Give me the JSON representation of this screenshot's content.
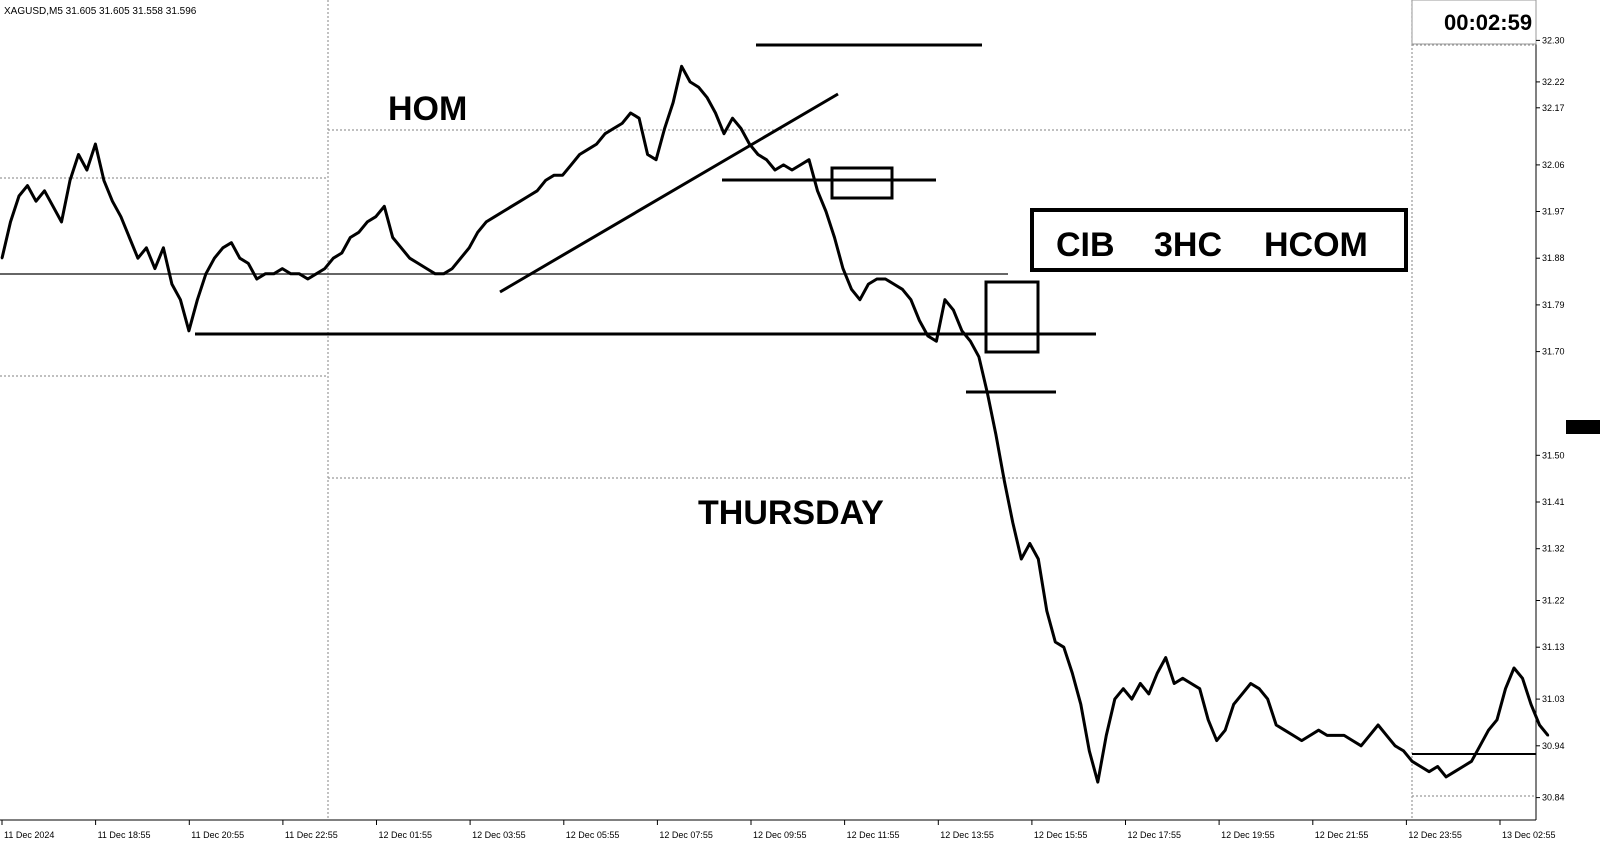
{
  "header": {
    "symbol_info": "XAGUSD,M5  31.605 31.605 31.558 31.596",
    "countdown": "00:02:59"
  },
  "annotations": {
    "hom": "HOM",
    "thursday": "THURSDAY",
    "box_labels": [
      "CIB",
      "3HC",
      "HCOM"
    ]
  },
  "chart_data": {
    "type": "line",
    "title": "",
    "xlabel": "",
    "ylabel": "",
    "x_ticks": [
      "11 Dec 2024",
      "11 Dec 18:55",
      "11 Dec 20:55",
      "11 Dec 22:55",
      "12 Dec 01:55",
      "12 Dec 03:55",
      "12 Dec 05:55",
      "12 Dec 07:55",
      "12 Dec 09:55",
      "12 Dec 11:55",
      "12 Dec 13:55",
      "12 Dec 15:55",
      "12 Dec 17:55",
      "12 Dec 19:55",
      "12 Dec 21:55",
      "12 Dec 23:55",
      "13 Dec 02:55"
    ],
    "y_ticks": [
      "32.30",
      "32.22",
      "32.17",
      "32.06",
      "31.97",
      "31.88",
      "31.79",
      "31.70",
      "31.50",
      "31.41",
      "31.32",
      "31.22",
      "31.13",
      "31.03",
      "30.94",
      "30.84"
    ],
    "ylim": [
      30.82,
      32.32
    ],
    "grid": false,
    "series": [
      {
        "values": [
          31.88,
          31.95,
          32.0,
          32.02,
          31.99,
          32.01,
          31.98,
          31.95,
          32.03,
          32.08,
          32.05,
          32.1,
          32.03,
          31.99,
          31.96,
          31.92,
          31.88,
          31.9,
          31.86,
          31.9,
          31.83,
          31.8,
          31.74,
          31.8,
          31.85,
          31.88,
          31.9,
          31.91,
          31.88,
          31.87,
          31.84,
          31.85,
          31.85,
          31.86,
          31.85,
          31.85,
          31.84,
          31.85,
          31.86,
          31.88,
          31.89,
          31.92,
          31.93,
          31.95,
          31.96,
          31.98,
          31.92,
          31.9,
          31.88,
          31.87,
          31.86,
          31.85,
          31.85,
          31.86,
          31.88,
          31.9,
          31.93,
          31.95,
          31.96,
          31.97,
          31.98,
          31.99,
          32.0,
          32.01,
          32.03,
          32.04,
          32.04,
          32.06,
          32.08,
          32.09,
          32.1,
          32.12,
          32.13,
          32.14,
          32.16,
          32.15,
          32.08,
          32.07,
          32.13,
          32.18,
          32.25,
          32.22,
          32.21,
          32.19,
          32.16,
          32.12,
          32.15,
          32.13,
          32.1,
          32.08,
          32.07,
          32.05,
          32.06,
          32.05,
          32.06,
          32.07,
          32.01,
          31.97,
          31.92,
          31.86,
          31.82,
          31.8,
          31.83,
          31.84,
          31.84,
          31.83,
          31.82,
          31.8,
          31.76,
          31.73,
          31.72,
          31.8,
          31.78,
          31.74,
          31.72,
          31.69,
          31.62,
          31.54,
          31.45,
          31.37,
          31.3,
          31.33,
          31.3,
          31.2,
          31.14,
          31.13,
          31.08,
          31.02,
          30.93,
          30.87,
          30.96,
          31.03,
          31.05,
          31.03,
          31.06,
          31.04,
          31.08,
          31.11,
          31.06,
          31.07,
          31.06,
          31.05,
          30.99,
          30.95,
          30.97,
          31.02,
          31.04,
          31.06,
          31.05,
          31.03,
          30.98,
          30.97,
          30.96,
          30.95,
          30.96,
          30.97,
          30.96,
          30.96,
          30.96,
          30.95,
          30.94,
          30.96,
          30.98,
          30.96,
          30.94,
          30.93,
          30.91,
          30.9,
          30.89,
          30.9,
          30.88,
          30.89,
          30.9,
          30.91,
          30.94,
          30.97,
          30.99,
          31.05,
          31.09,
          31.07,
          31.02,
          30.98,
          30.96
        ]
      }
    ]
  }
}
